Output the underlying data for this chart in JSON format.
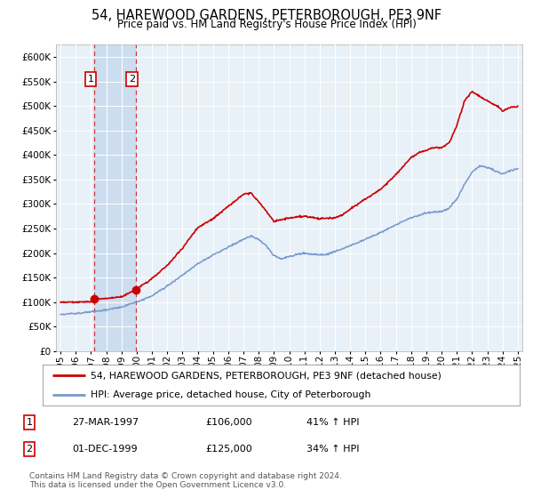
{
  "title": "54, HAREWOOD GARDENS, PETERBOROUGH, PE3 9NF",
  "subtitle": "Price paid vs. HM Land Registry's House Price Index (HPI)",
  "yticks": [
    0,
    50000,
    100000,
    150000,
    200000,
    250000,
    300000,
    350000,
    400000,
    450000,
    500000,
    550000,
    600000
  ],
  "ylim": [
    0,
    625000
  ],
  "xlim_start": 1994.7,
  "xlim_end": 2025.3,
  "background_color": "#ffffff",
  "plot_background_color": "#e8f0f8",
  "grid_color": "#ffffff",
  "sale1_date": 1997.23,
  "sale1_price": 106000,
  "sale2_date": 1999.92,
  "sale2_price": 125000,
  "legend_line1": "54, HAREWOOD GARDENS, PETERBOROUGH, PE3 9NF (detached house)",
  "legend_line2": "HPI: Average price, detached house, City of Peterborough",
  "table_row1": [
    "1",
    "27-MAR-1997",
    "£106,000",
    "41% ↑ HPI"
  ],
  "table_row2": [
    "2",
    "01-DEC-1999",
    "£125,000",
    "34% ↑ HPI"
  ],
  "footnote": "Contains HM Land Registry data © Crown copyright and database right 2024.\nThis data is licensed under the Open Government Licence v3.0.",
  "red_line_color": "#cc0000",
  "blue_line_color": "#7799cc",
  "vline_color": "#cc3333",
  "shade_color": "#ccddef"
}
